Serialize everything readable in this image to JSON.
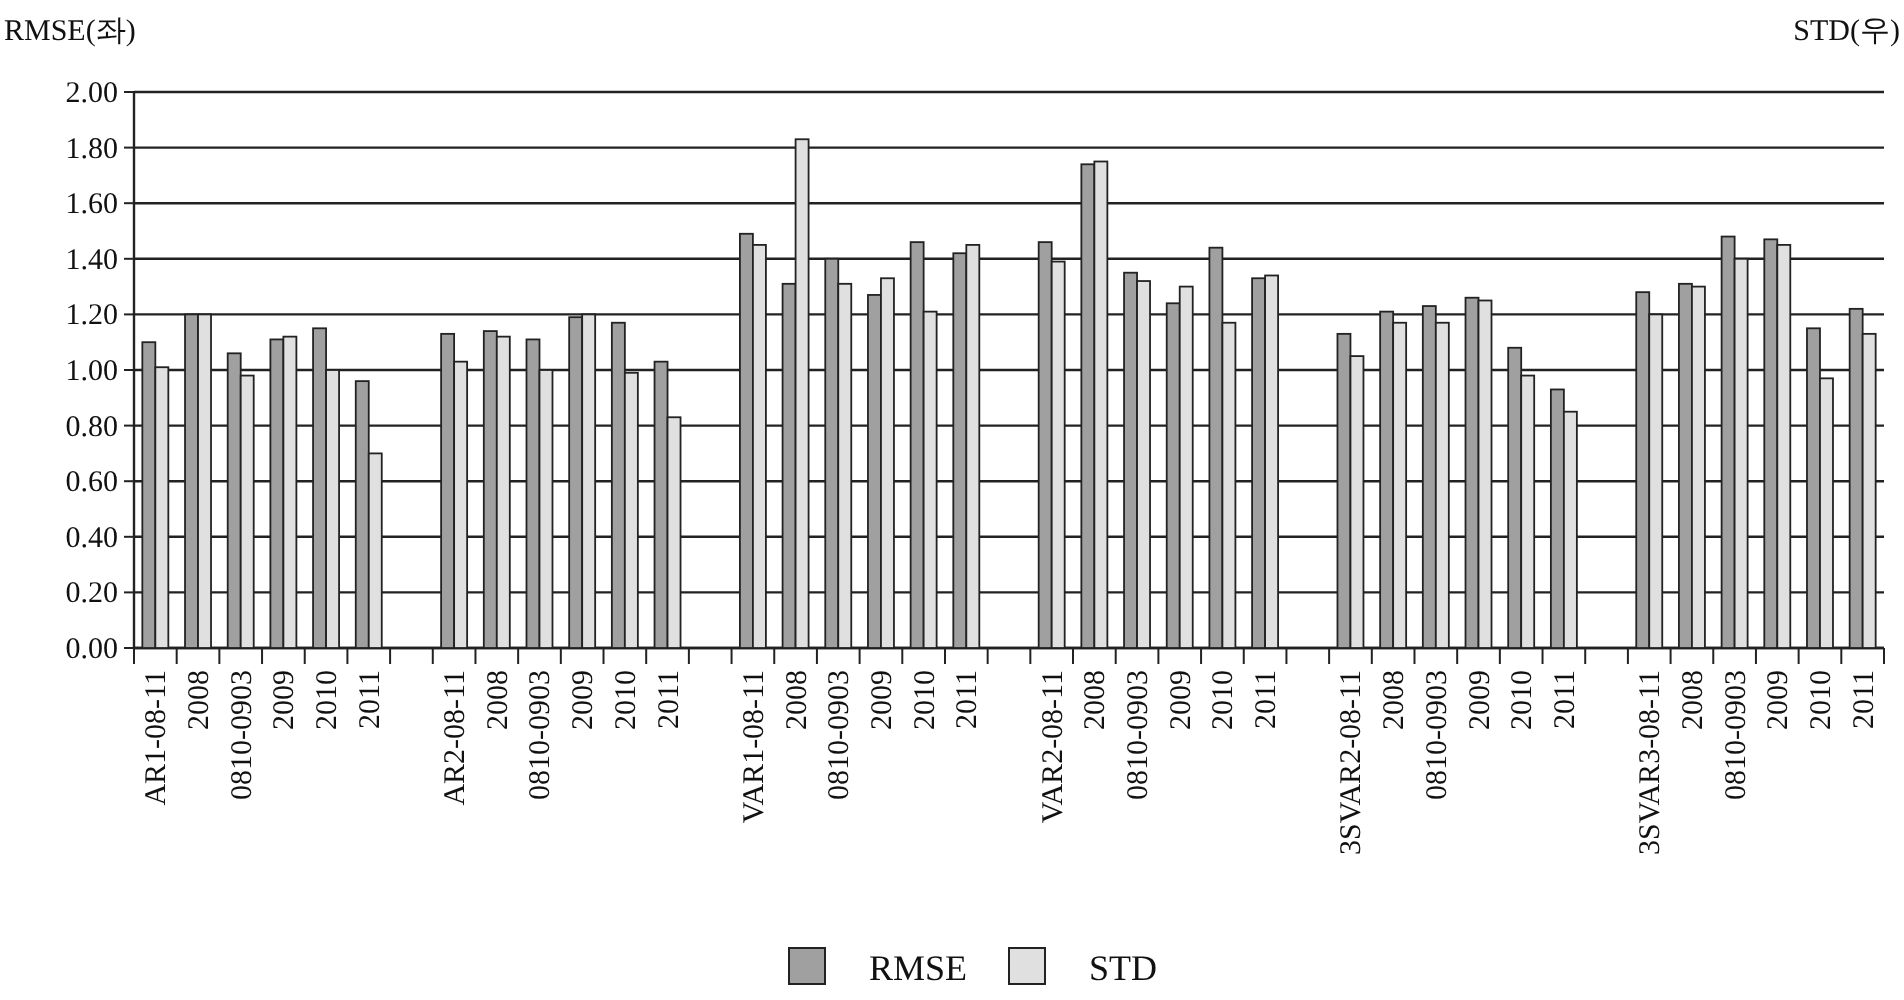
{
  "chart_data": {
    "type": "bar",
    "ylabel": "RMSE(좌)",
    "y2label": "STD(우)",
    "categories": [
      "AR1-08-11",
      "2008",
      "0810-0903",
      "2009",
      "2010",
      "2011",
      null,
      "AR2-08-11",
      "2008",
      "0810-0903",
      "2009",
      "2010",
      "2011",
      null,
      "VAR1-08-11",
      "2008",
      "0810-0903",
      "2009",
      "2010",
      "2011",
      null,
      "VAR2-08-11",
      "2008",
      "0810-0903",
      "2009",
      "2010",
      "2011",
      null,
      "3SVAR2-08-11",
      "2008",
      "0810-0903",
      "2009",
      "2010",
      "2011",
      null,
      "3SVAR3-08-11",
      "2008",
      "0810-0903",
      "2009",
      "2010",
      "2011"
    ],
    "series": [
      {
        "name": "RMSE",
        "color": "#a0a0a0",
        "values": [
          1.1,
          1.2,
          1.06,
          1.11,
          1.15,
          0.96,
          null,
          1.13,
          1.14,
          1.11,
          1.19,
          1.17,
          1.03,
          null,
          1.49,
          1.31,
          1.4,
          1.27,
          1.46,
          1.42,
          null,
          1.46,
          1.74,
          1.35,
          1.24,
          1.44,
          1.33,
          null,
          1.13,
          1.21,
          1.23,
          1.26,
          1.08,
          0.93,
          null,
          1.28,
          1.31,
          1.48,
          1.47,
          1.15,
          1.22
        ]
      },
      {
        "name": "STD",
        "color": "#e0e0e0",
        "values": [
          1.01,
          1.2,
          0.98,
          1.12,
          1.0,
          0.7,
          null,
          1.03,
          1.12,
          1.0,
          1.2,
          0.99,
          0.83,
          null,
          1.45,
          1.83,
          1.31,
          1.33,
          1.21,
          1.45,
          null,
          1.39,
          1.75,
          1.32,
          1.3,
          1.17,
          1.34,
          null,
          1.05,
          1.17,
          1.17,
          1.25,
          0.98,
          0.85,
          null,
          1.2,
          1.3,
          1.4,
          1.45,
          0.97,
          1.13
        ]
      }
    ],
    "ylim": [
      0,
      2
    ],
    "yticks": [
      {
        "value": 0,
        "label": "0.00"
      },
      {
        "value": 0.2,
        "label": "0.20"
      },
      {
        "value": 0.4,
        "label": "0.40"
      },
      {
        "value": 0.6,
        "label": "0.60"
      },
      {
        "value": 0.8,
        "label": "0.80"
      },
      {
        "value": 1,
        "label": "1.00"
      },
      {
        "value": 1.2,
        "label": "1.20"
      },
      {
        "value": 1.4,
        "label": "1.40"
      },
      {
        "value": 1.6,
        "label": "1.60"
      },
      {
        "value": 1.8,
        "label": "1.80"
      },
      {
        "value": 2,
        "label": "2.00"
      }
    ],
    "grid": "y",
    "legend": "bottom"
  }
}
